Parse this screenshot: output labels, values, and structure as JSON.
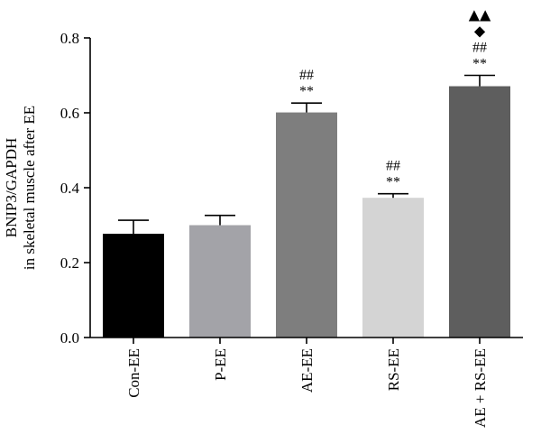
{
  "chart_data": {
    "type": "bar",
    "categories": [
      "Con-EE",
      "P-EE",
      "AE-EE",
      "RS-EE",
      "AE + RS-EE"
    ],
    "values": [
      0.277,
      0.3,
      0.601,
      0.373,
      0.671
    ],
    "errors": [
      0.036,
      0.026,
      0.025,
      0.011,
      0.029
    ],
    "bar_colors": [
      "#000000",
      "#a3a3a8",
      "#7e7e7e",
      "#d4d4d4",
      "#5e5e5e"
    ],
    "ylabel": [
      "BNIP3/GAPDH",
      "in skeletal muscle after EE"
    ],
    "ylim": [
      0,
      0.8
    ],
    "yticks": [
      "0.0",
      "0.2",
      "0.4",
      "0.6",
      "0.8"
    ],
    "ytick_values": [
      0,
      0.2,
      0.4,
      0.6,
      0.8
    ],
    "annotations": [
      [],
      [],
      [
        "**",
        "##"
      ],
      [
        "**",
        "##"
      ],
      [
        "**",
        "##",
        "◆",
        "▲▲"
      ]
    ],
    "grid": false
  }
}
